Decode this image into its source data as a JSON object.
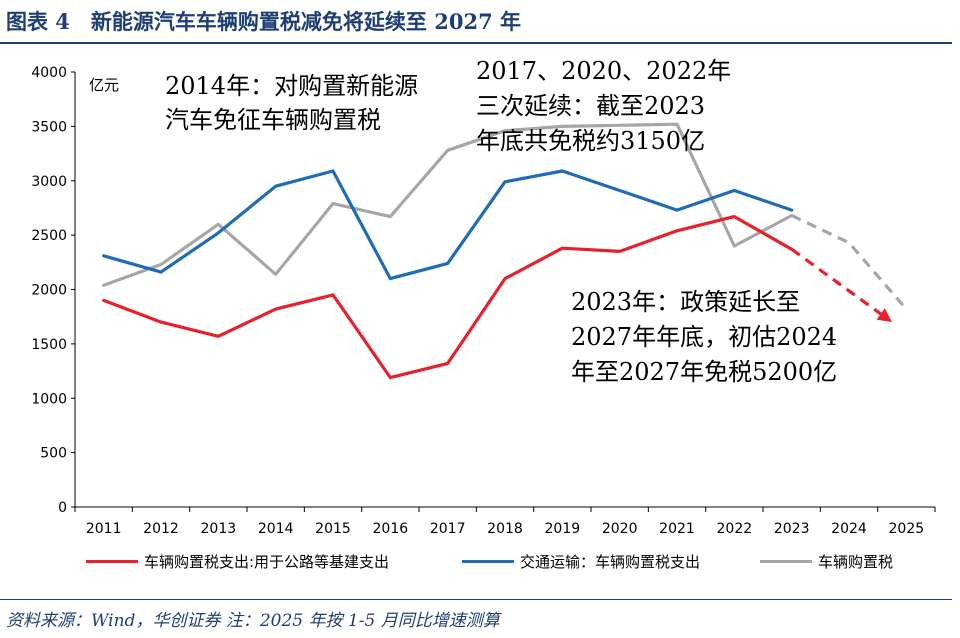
{
  "header": {
    "title": "图表 4　新能源汽车车辆购置税减免将延续至 2027 年"
  },
  "footer": {
    "source": "资料来源：Wind，华创证券 注：2025 年按 1-5 月同比增速测算"
  },
  "chart_data": {
    "type": "line",
    "title": "",
    "xlabel": "",
    "ylabel": "亿元",
    "ylim": [
      0,
      4000
    ],
    "yticks": [
      "0",
      "500",
      "1000",
      "1500",
      "2000",
      "2500",
      "3000",
      "3500",
      "4000"
    ],
    "categories": [
      "2011",
      "2012",
      "2013",
      "2014",
      "2015",
      "2016",
      "2017",
      "2018",
      "2019",
      "2020",
      "2021",
      "2022",
      "2023",
      "2024",
      "2025"
    ],
    "series": [
      {
        "name": "车辆购置税支出:用于公路等基建支出",
        "color": "#e8202a",
        "values": [
          1900,
          1700,
          1570,
          1820,
          1950,
          1190,
          1320,
          2100,
          2380,
          2350,
          2540,
          2670,
          2370,
          null,
          null
        ],
        "projection": {
          "from_index": 12,
          "to_value_x": 13.75,
          "to_value_y": 1700,
          "arrow": true
        }
      },
      {
        "name": "交通运输：车辆购置税支出",
        "color": "#1f6bb5",
        "values": [
          2310,
          2160,
          2520,
          2950,
          3090,
          2100,
          2240,
          2990,
          3090,
          2910,
          2730,
          2910,
          2730,
          null,
          null
        ]
      },
      {
        "name": "车辆购置税",
        "color": "#a6a6a6",
        "values": [
          2040,
          2230,
          2600,
          2140,
          2790,
          2670,
          3280,
          3460,
          3500,
          3510,
          3520,
          2400,
          2680,
          null,
          null
        ],
        "projection": {
          "from_index": 12,
          "values": [
            2680,
            2430,
            1820
          ]
        }
      }
    ],
    "annotations": [
      {
        "lines": [
          "2014年：对购置新能源",
          "汽车免征车辆购置税"
        ]
      },
      {
        "lines": [
          "2017、2020、2022年",
          "三次延续：截至2023",
          "年底共免税约3150亿"
        ]
      },
      {
        "lines": [
          "2023年：政策延长至",
          "2027年年底，初估2024",
          "年至2027年免税5200亿"
        ]
      }
    ],
    "grid": false,
    "legend": "bottom"
  },
  "colors": {
    "title": "#1f3f73",
    "red": "#e8202a",
    "blue": "#1f6bb5",
    "gray": "#a6a6a6"
  }
}
